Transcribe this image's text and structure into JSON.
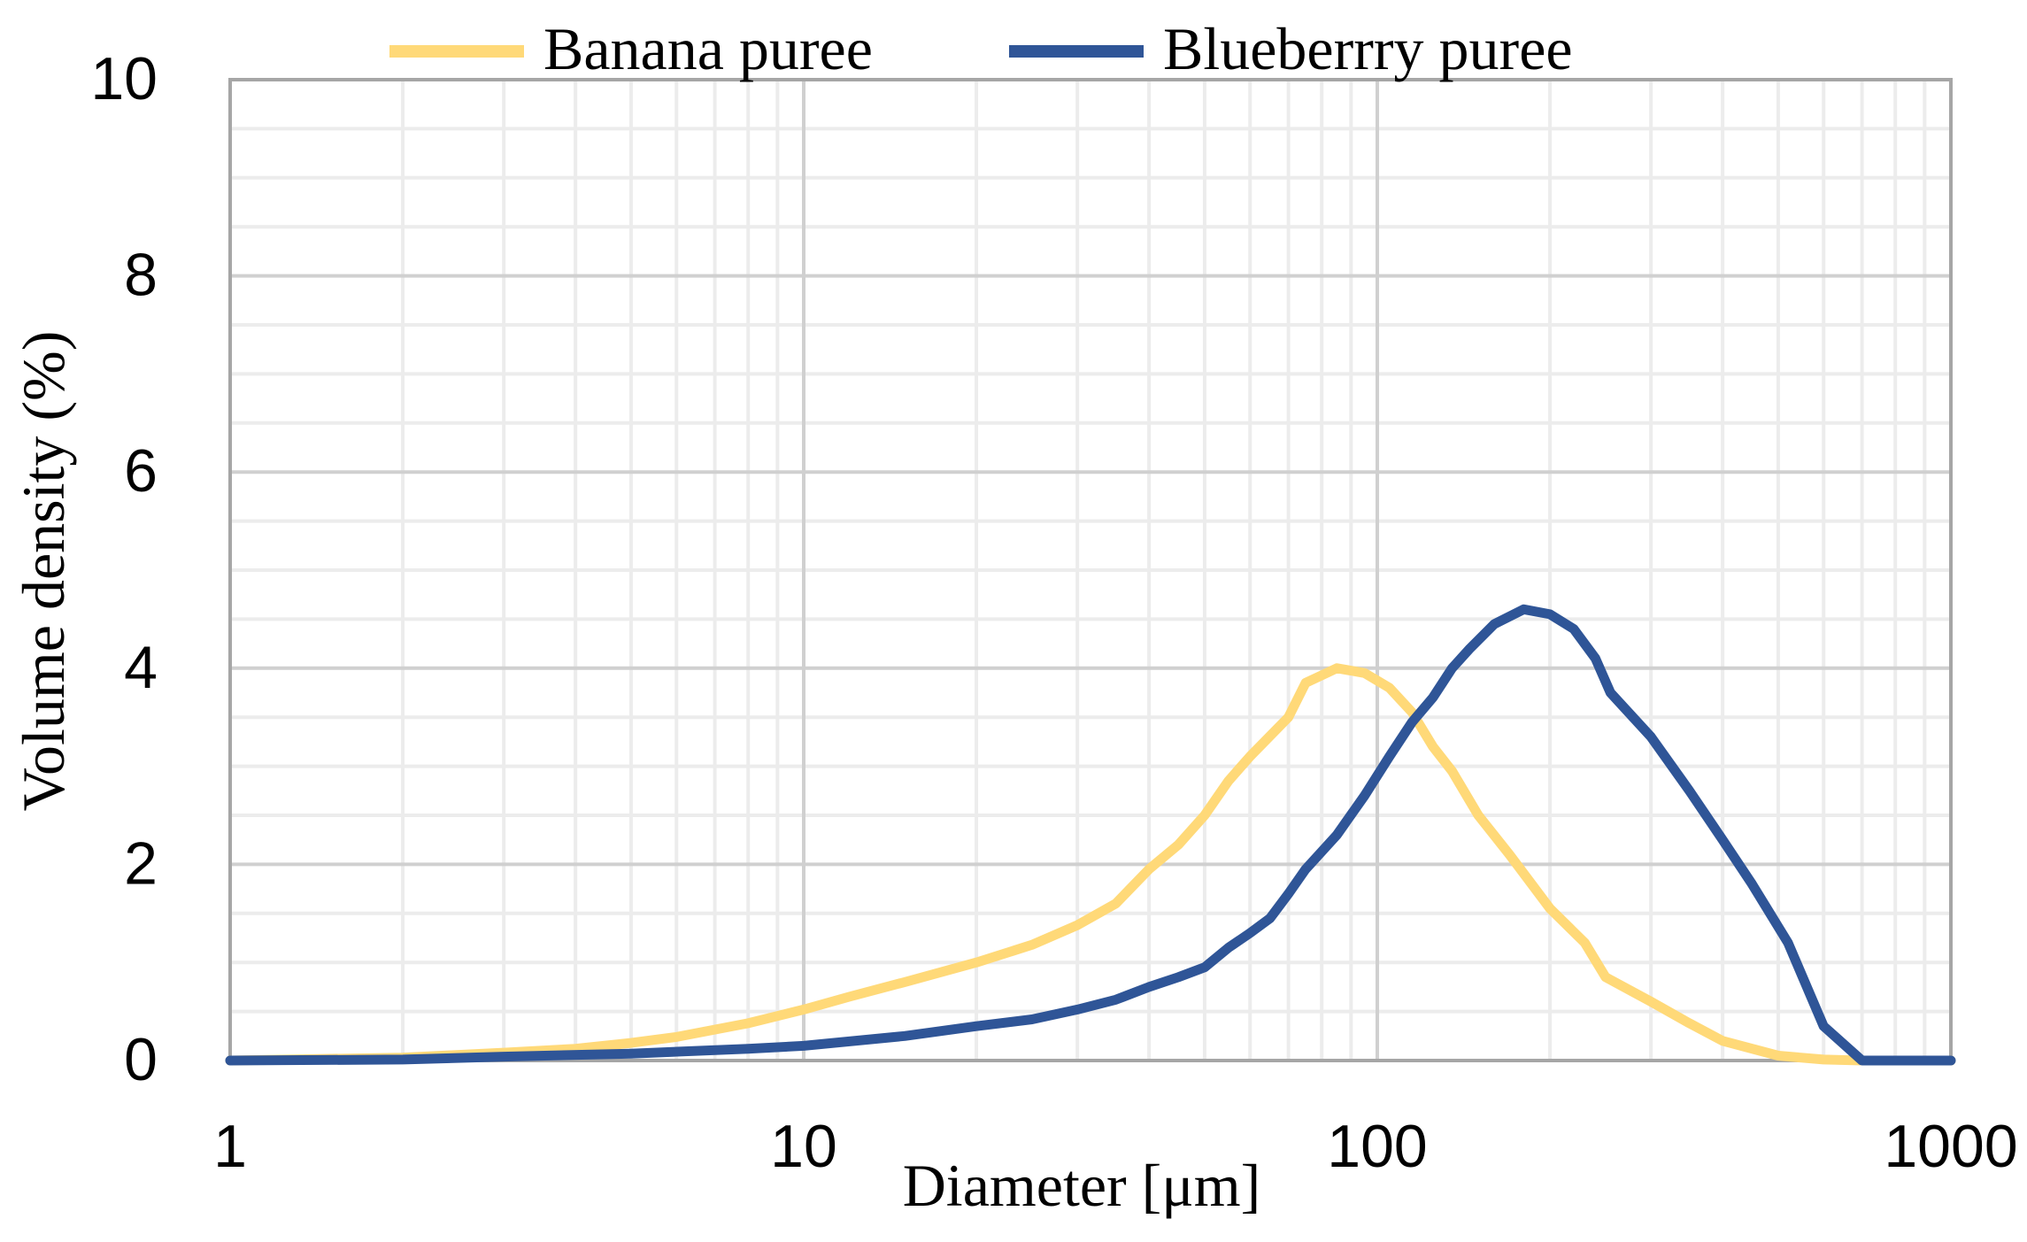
{
  "chart_data": {
    "type": "line",
    "xlabel": "Diameter [μm]",
    "ylabel": "Volume density (%)",
    "xscale": "log",
    "xlim": [
      1,
      1000
    ],
    "ylim": [
      0,
      10
    ],
    "x_ticks": [
      "1",
      "10",
      "100",
      "1000"
    ],
    "y_ticks": [
      "0",
      "2",
      "4",
      "6",
      "8",
      "10"
    ],
    "grid": true,
    "legend_position": "top",
    "series": [
      {
        "name": "Banana puree",
        "color": "#FFD978",
        "points": [
          [
            1,
            0.0
          ],
          [
            2,
            0.03
          ],
          [
            3,
            0.08
          ],
          [
            4,
            0.12
          ],
          [
            5,
            0.18
          ],
          [
            6,
            0.24
          ],
          [
            8,
            0.38
          ],
          [
            10,
            0.52
          ],
          [
            12,
            0.65
          ],
          [
            15,
            0.8
          ],
          [
            20,
            1.0
          ],
          [
            25,
            1.18
          ],
          [
            30,
            1.38
          ],
          [
            35,
            1.6
          ],
          [
            40,
            1.95
          ],
          [
            45,
            2.2
          ],
          [
            50,
            2.5
          ],
          [
            55,
            2.85
          ],
          [
            60,
            3.1
          ],
          [
            70,
            3.5
          ],
          [
            75,
            3.85
          ],
          [
            85,
            4.0
          ],
          [
            95,
            3.95
          ],
          [
            105,
            3.8
          ],
          [
            115,
            3.55
          ],
          [
            125,
            3.2
          ],
          [
            135,
            2.95
          ],
          [
            150,
            2.5
          ],
          [
            170,
            2.1
          ],
          [
            200,
            1.55
          ],
          [
            230,
            1.2
          ],
          [
            250,
            0.85
          ],
          [
            300,
            0.6
          ],
          [
            350,
            0.38
          ],
          [
            400,
            0.2
          ],
          [
            500,
            0.05
          ],
          [
            600,
            0.01
          ],
          [
            700,
            0.0
          ],
          [
            1000,
            0.0
          ]
        ]
      },
      {
        "name": "Blueberrry puree",
        "color": "#2F5597",
        "points": [
          [
            1,
            0.0
          ],
          [
            2,
            0.01
          ],
          [
            3,
            0.04
          ],
          [
            5,
            0.07
          ],
          [
            8,
            0.12
          ],
          [
            10,
            0.15
          ],
          [
            15,
            0.25
          ],
          [
            20,
            0.35
          ],
          [
            25,
            0.42
          ],
          [
            30,
            0.52
          ],
          [
            35,
            0.62
          ],
          [
            40,
            0.75
          ],
          [
            45,
            0.85
          ],
          [
            50,
            0.95
          ],
          [
            55,
            1.15
          ],
          [
            60,
            1.3
          ],
          [
            65,
            1.45
          ],
          [
            70,
            1.7
          ],
          [
            75,
            1.95
          ],
          [
            85,
            2.3
          ],
          [
            95,
            2.7
          ],
          [
            105,
            3.1
          ],
          [
            115,
            3.45
          ],
          [
            125,
            3.7
          ],
          [
            135,
            4.0
          ],
          [
            145,
            4.2
          ],
          [
            160,
            4.45
          ],
          [
            180,
            4.6
          ],
          [
            200,
            4.55
          ],
          [
            220,
            4.4
          ],
          [
            240,
            4.1
          ],
          [
            255,
            3.75
          ],
          [
            300,
            3.3
          ],
          [
            350,
            2.75
          ],
          [
            400,
            2.25
          ],
          [
            450,
            1.8
          ],
          [
            520,
            1.2
          ],
          [
            600,
            0.35
          ],
          [
            700,
            0.0
          ],
          [
            1000,
            0.0
          ]
        ]
      }
    ]
  }
}
